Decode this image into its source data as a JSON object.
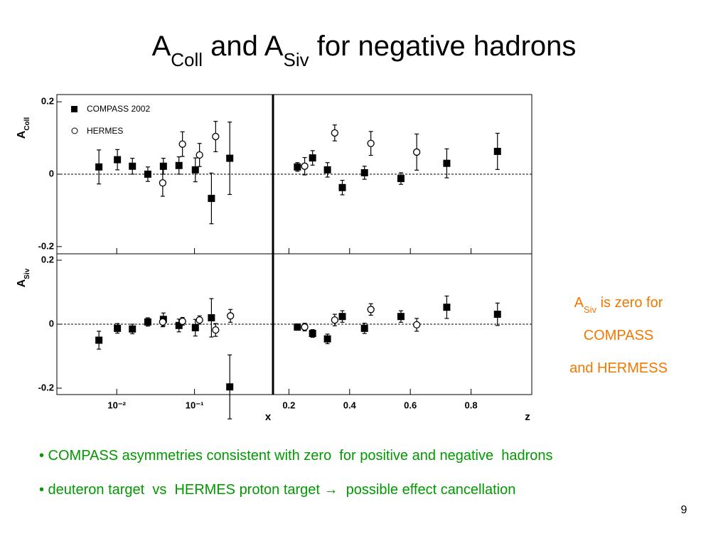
{
  "title_parts": [
    {
      "text": "A"
    },
    {
      "text": "Coll",
      "sub": true
    },
    {
      "text": " and A"
    },
    {
      "text": "Siv",
      "sub": true
    },
    {
      "text": " for  negative  hadrons"
    }
  ],
  "side_note": {
    "parts": [
      {
        "text": "A"
      },
      {
        "text": "Siv",
        "sub": true
      },
      {
        "text": " is zero for"
      }
    ],
    "line2": "COMPASS",
    "line3": "and HERMESS",
    "color": "#f07800"
  },
  "bullets": [
    "• COMPASS asymmetries consistent with zero  for positive and negative  hadrons",
    "• deuteron target  vs  HERMES proton target →  possible effect cancellation"
  ],
  "bullet_color": "#009a00",
  "page_number": "9",
  "chart_data": [
    {
      "type": "scatter",
      "xscale": "log",
      "xlim": [
        0.0017,
        1
      ],
      "ylim": [
        -0.22,
        0.22
      ],
      "xticks": [
        {
          "value": 0.01,
          "label": "10⁻²"
        },
        {
          "value": 0.1,
          "label": "10⁻¹"
        }
      ],
      "xtick_labels": false,
      "yticks": [
        0.2,
        0,
        -0.2
      ],
      "ylabel": "A",
      "ylabel_sub": "Coll",
      "reference_line": 0,
      "legend": "upper left",
      "series": [
        {
          "name": "COMPASS 2002",
          "marker": "square",
          "color": "#000000",
          "x": [
            0.0059,
            0.0102,
            0.0159,
            0.0251,
            0.0398,
            0.0631,
            0.1025,
            0.165,
            0.284
          ],
          "values": [
            0.02,
            0.04,
            0.022,
            0,
            0.022,
            0.024,
            0.012,
            -0.067,
            0.044
          ],
          "errors": [
            0.047,
            0.028,
            0.022,
            0.02,
            0.022,
            0.024,
            0.033,
            0.07,
            0.1
          ]
        },
        {
          "name": "HERMES",
          "marker": "circle",
          "color": "#000000",
          "x": [
            0.039,
            0.07,
            0.116,
            0.187
          ],
          "values": [
            -0.024,
            0.083,
            0.053,
            0.104
          ],
          "errors": [
            0.037,
            0.034,
            0.032,
            0.042
          ]
        }
      ]
    },
    {
      "type": "scatter",
      "xscale": "linear",
      "xlim": [
        0.15,
        1.0
      ],
      "ylim": [
        -0.22,
        0.22
      ],
      "xticks": [
        0.2,
        0.4,
        0.6,
        0.8
      ],
      "xtick_labels": false,
      "reference_line": 0,
      "series": [
        {
          "marker": "square",
          "color": "#000000",
          "x": [
            0.228,
            0.278,
            0.327,
            0.376,
            0.449,
            0.569,
            0.72,
            0.887
          ],
          "values": [
            0.02,
            0.045,
            0.012,
            -0.037,
            0.004,
            -0.012,
            0.03,
            0.063
          ],
          "errors": [
            0.012,
            0.02,
            0.02,
            0.02,
            0.018,
            0.016,
            0.04,
            0.05
          ]
        },
        {
          "marker": "circle",
          "color": "#000000",
          "x": [
            0.252,
            0.351,
            0.47,
            0.621
          ],
          "values": [
            0.022,
            0.114,
            0.085,
            0.061
          ],
          "errors": [
            0.024,
            0.022,
            0.033,
            0.05
          ]
        }
      ]
    },
    {
      "type": "scatter",
      "xscale": "log",
      "xlim": [
        0.0017,
        1
      ],
      "ylim": [
        -0.22,
        0.22
      ],
      "xticks": [
        {
          "value": 0.01,
          "label": "10⁻²"
        },
        {
          "value": 0.1,
          "label": "10⁻¹"
        }
      ],
      "xtick_labels": true,
      "yticks": [
        0.2,
        0,
        -0.2
      ],
      "ylabel": "A",
      "ylabel_sub": "Siv",
      "xlabel": "x",
      "reference_line": 0,
      "series": [
        {
          "marker": "square",
          "color": "#000000",
          "x": [
            0.0059,
            0.0102,
            0.0159,
            0.0251,
            0.0398,
            0.0631,
            0.1025,
            0.165,
            0.284
          ],
          "values": [
            -0.05,
            -0.013,
            -0.015,
            0.007,
            0.015,
            -0.004,
            -0.011,
            0.02,
            -0.196
          ],
          "errors": [
            0.028,
            0.015,
            0.015,
            0.013,
            0.02,
            0.02,
            0.026,
            0.06,
            0.1
          ]
        },
        {
          "marker": "circle",
          "color": "#000000",
          "x": [
            0.039,
            0.07,
            0.116,
            0.187,
            0.29
          ],
          "values": [
            0.007,
            0.009,
            0.013,
            -0.018,
            0.026
          ],
          "errors": [
            0.015,
            0.012,
            0.013,
            0.02,
            0.02
          ]
        }
      ]
    },
    {
      "type": "scatter",
      "xscale": "linear",
      "xlim": [
        0.15,
        1.0
      ],
      "ylim": [
        -0.22,
        0.22
      ],
      "xticks": [
        0.2,
        0.4,
        0.6,
        0.8
      ],
      "xtick_labels": true,
      "xlabel": "z",
      "reference_line": 0,
      "series": [
        {
          "marker": "square",
          "color": "#000000",
          "x": [
            0.228,
            0.278,
            0.327,
            0.376,
            0.449,
            0.569,
            0.72,
            0.887
          ],
          "values": [
            -0.009,
            -0.029,
            -0.046,
            0.024,
            -0.013,
            0.024,
            0.053,
            0.031
          ],
          "errors": [
            0.01,
            0.012,
            0.015,
            0.018,
            0.016,
            0.018,
            0.035,
            0.035
          ]
        },
        {
          "marker": "circle",
          "color": "#000000",
          "x": [
            0.252,
            0.351,
            0.47,
            0.621
          ],
          "values": [
            -0.009,
            0.013,
            0.046,
            -0.002
          ],
          "errors": [
            0.012,
            0.018,
            0.018,
            0.02
          ]
        }
      ]
    }
  ]
}
